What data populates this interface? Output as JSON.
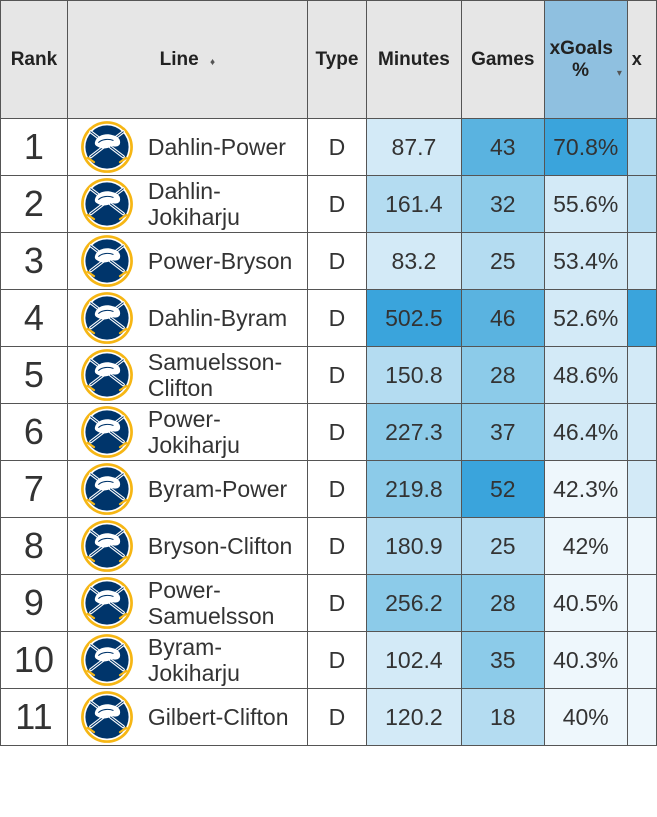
{
  "columns": {
    "rank": "Rank",
    "line": "Line",
    "line_sort": "♦",
    "type": "Type",
    "minutes": "Minutes",
    "games": "Games",
    "xgoals": "xGoals %",
    "xgoals_sort": "▾",
    "clipped": "x"
  },
  "colors": {
    "header_bg": "#e6e6e6",
    "sorted_header_bg": "#8fc0e0",
    "scale": [
      "#eef7fc",
      "#d3eaf7",
      "#b4dcf1",
      "#8ccbe9",
      "#5ab3e0",
      "#3aa4dc"
    ]
  },
  "logo_icon": "buffalo-sabres-logo-icon",
  "rows": [
    {
      "rank": "1",
      "line": "Dahlin-Power",
      "type": "D",
      "minutes": "87.7",
      "games": "43",
      "xgoals": "70.8%",
      "m_level": 0.18,
      "g_level": 0.78,
      "x_level": 1.0,
      "e_level": 0.45
    },
    {
      "rank": "2",
      "line": "Dahlin-Jokiharju",
      "type": "D",
      "minutes": "161.4",
      "games": "32",
      "xgoals": "55.6%",
      "m_level": 0.35,
      "g_level": 0.6,
      "x_level": 0.22,
      "e_level": 0.3
    },
    {
      "rank": "3",
      "line": "Power-Bryson",
      "type": "D",
      "minutes": "83.2",
      "games": "25",
      "xgoals": "53.4%",
      "m_level": 0.15,
      "g_level": 0.45,
      "x_level": 0.2,
      "e_level": 0.2
    },
    {
      "rank": "4",
      "line": "Dahlin-Byram",
      "type": "D",
      "minutes": "502.5",
      "games": "46",
      "xgoals": "52.6%",
      "m_level": 1.0,
      "g_level": 0.85,
      "x_level": 0.2,
      "e_level": 0.95
    },
    {
      "rank": "5",
      "line": "Samuelsson-Clifton",
      "type": "D",
      "minutes": "150.8",
      "games": "28",
      "xgoals": "48.6%",
      "m_level": 0.33,
      "g_level": 0.52,
      "x_level": 0.15,
      "e_level": 0.1
    },
    {
      "rank": "6",
      "line": "Power-Jokiharju",
      "type": "D",
      "minutes": "227.3",
      "games": "37",
      "xgoals": "46.4%",
      "m_level": 0.55,
      "g_level": 0.68,
      "x_level": 0.12,
      "e_level": 0.1
    },
    {
      "rank": "7",
      "line": "Byram-Power",
      "type": "D",
      "minutes": "219.8",
      "games": "52",
      "xgoals": "42.3%",
      "m_level": 0.52,
      "g_level": 1.0,
      "x_level": 0.08,
      "e_level": 0.1
    },
    {
      "rank": "8",
      "line": "Bryson-Clifton",
      "type": "D",
      "minutes": "180.9",
      "games": "25",
      "xgoals": "42%",
      "m_level": 0.4,
      "g_level": 0.45,
      "x_level": 0.05,
      "e_level": 0.05
    },
    {
      "rank": "9",
      "line": "Power-Samuelsson",
      "type": "D",
      "minutes": "256.2",
      "games": "28",
      "xgoals": "40.5%",
      "m_level": 0.62,
      "g_level": 0.52,
      "x_level": 0.04,
      "e_level": 0.05
    },
    {
      "rank": "10",
      "line": "Byram-Jokiharju",
      "type": "D",
      "minutes": "102.4",
      "games": "35",
      "xgoals": "40.3%",
      "m_level": 0.22,
      "g_level": 0.65,
      "x_level": 0.03,
      "e_level": 0.05
    },
    {
      "rank": "11",
      "line": "Gilbert-Clifton",
      "type": "D",
      "minutes": "120.2",
      "games": "18",
      "xgoals": "40%",
      "m_level": 0.28,
      "g_level": 0.32,
      "x_level": 0.02,
      "e_level": 0.05
    }
  ]
}
